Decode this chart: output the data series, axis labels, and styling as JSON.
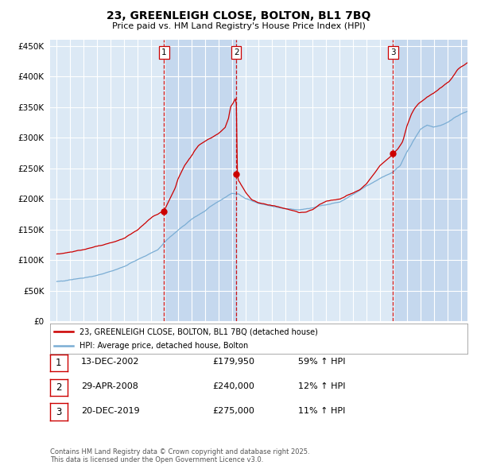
{
  "title": "23, GREENLEIGH CLOSE, BOLTON, BL1 7BQ",
  "subtitle": "Price paid vs. HM Land Registry's House Price Index (HPI)",
  "plot_bg_color": "#dce9f5",
  "shade_color": "#c5d8ee",
  "line1_color": "#cc0000",
  "line2_color": "#7aadd4",
  "ylim": [
    0,
    460000
  ],
  "yticks": [
    0,
    50000,
    100000,
    150000,
    200000,
    250000,
    300000,
    350000,
    400000,
    450000
  ],
  "xlim_start": 1994.5,
  "xlim_end": 2025.5,
  "vline1_x": 2002.96,
  "vline2_x": 2008.33,
  "vline3_x": 2019.97,
  "marker1_x": 2002.96,
  "marker1_y": 179950,
  "marker2_x": 2008.33,
  "marker2_y": 240000,
  "marker3_x": 2019.97,
  "marker3_y": 275000,
  "legend_line1": "23, GREENLEIGH CLOSE, BOLTON, BL1 7BQ (detached house)",
  "legend_line2": "HPI: Average price, detached house, Bolton",
  "table_rows": [
    {
      "num": "1",
      "date": "13-DEC-2002",
      "price": "£179,950",
      "change": "59% ↑ HPI"
    },
    {
      "num": "2",
      "date": "29-APR-2008",
      "price": "£240,000",
      "change": "12% ↑ HPI"
    },
    {
      "num": "3",
      "date": "20-DEC-2019",
      "price": "£275,000",
      "change": "11% ↑ HPI"
    }
  ],
  "footnote": "Contains HM Land Registry data © Crown copyright and database right 2025.\nThis data is licensed under the Open Government Licence v3.0."
}
